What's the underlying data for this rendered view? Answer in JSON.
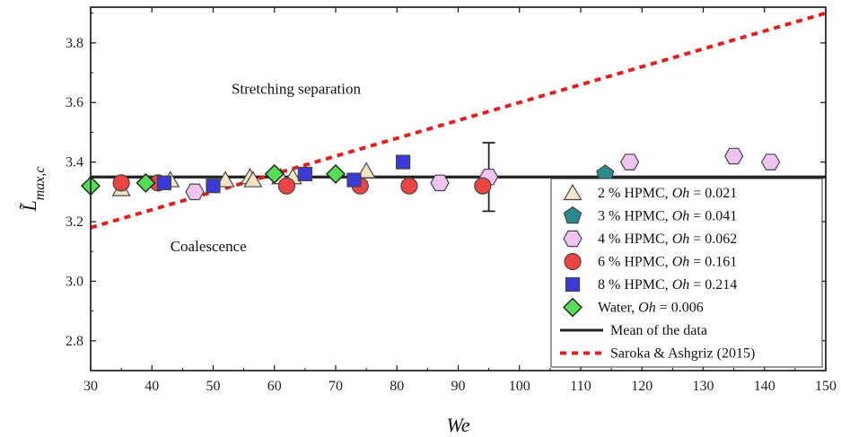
{
  "chart_data": {
    "type": "scatter",
    "xlabel": "We",
    "ylabel": "L̃max,c",
    "xlim": [
      30,
      150
    ],
    "ylim": [
      2.7,
      3.92
    ],
    "xticks": [
      30,
      40,
      50,
      60,
      70,
      80,
      90,
      100,
      110,
      120,
      130,
      140,
      150
    ],
    "yticks": [
      2.8,
      3.0,
      3.2,
      3.4,
      3.6,
      3.8
    ],
    "annotations": [
      {
        "text": "Stretching separation",
        "x": 53,
        "y": 3.63
      },
      {
        "text": "Coalescence",
        "x": 43,
        "y": 3.1
      }
    ],
    "series": [
      {
        "name": "2 % HPMC, Oh = 0.021",
        "marker": "triangle",
        "color": "#f3e4c6",
        "points": [
          [
            35,
            3.31
          ],
          [
            43,
            3.34
          ],
          [
            52,
            3.34
          ],
          [
            56,
            3.35
          ],
          [
            56.5,
            3.34
          ],
          [
            61,
            3.35
          ],
          [
            63,
            3.35
          ],
          [
            75,
            3.37
          ]
        ]
      },
      {
        "name": "3 % HPMC, Oh = 0.041",
        "marker": "pentagon",
        "color": "#2a8a8c",
        "points": [
          [
            114,
            3.36
          ]
        ]
      },
      {
        "name": "4 % HPMC, Oh = 0.062",
        "marker": "hexagon",
        "color": "#f0c4f0",
        "points": [
          [
            47,
            3.3
          ],
          [
            87,
            3.33
          ],
          [
            95,
            3.35
          ],
          [
            118,
            3.4
          ],
          [
            135,
            3.42
          ],
          [
            141,
            3.4
          ]
        ]
      },
      {
        "name": "6 % HPMC, Oh = 0.161",
        "marker": "circle",
        "color": "#ee4444",
        "points": [
          [
            35,
            3.33
          ],
          [
            41,
            3.33
          ],
          [
            62,
            3.32
          ],
          [
            74,
            3.32
          ],
          [
            82,
            3.32
          ],
          [
            94,
            3.32
          ]
        ]
      },
      {
        "name": "8 % HPMC, Oh = 0.214",
        "marker": "square",
        "color": "#3a3ad8",
        "points": [
          [
            42,
            3.33
          ],
          [
            50,
            3.32
          ],
          [
            65,
            3.36
          ],
          [
            73,
            3.34
          ],
          [
            81,
            3.4
          ]
        ]
      },
      {
        "name": "Water, Oh = 0.006",
        "marker": "diamond",
        "color": "#55dd55",
        "points": [
          [
            30,
            3.32
          ],
          [
            39,
            3.33
          ],
          [
            60,
            3.36
          ],
          [
            70,
            3.36
          ]
        ]
      }
    ],
    "lines": [
      {
        "name": "Mean of the data",
        "style": "solid",
        "color": "#222222",
        "points": [
          [
            30,
            3.35
          ],
          [
            150,
            3.35
          ]
        ]
      },
      {
        "name": "Saroka & Ashgriz (2015)",
        "style": "dotted",
        "color": "#e81c1c",
        "points": [
          [
            30,
            3.18
          ],
          [
            150,
            3.9
          ]
        ]
      }
    ],
    "error_bars": [
      {
        "x": 95,
        "y": 3.35,
        "low": 3.235,
        "high": 3.465
      }
    ],
    "legend": {
      "position": "bottom-right",
      "entries": [
        {
          "prefix": "2 % HPMC, ",
          "italic": "Oh",
          "suffix": " = 0.021",
          "marker": "triangle",
          "color": "#f3e4c6"
        },
        {
          "prefix": "3 % HPMC, ",
          "italic": "Oh",
          "suffix": " = 0.041",
          "marker": "pentagon",
          "color": "#2a8a8c"
        },
        {
          "prefix": "4 % HPMC, ",
          "italic": "Oh",
          "suffix": " = 0.062",
          "marker": "hexagon",
          "color": "#f0c4f0"
        },
        {
          "prefix": "6 % HPMC, ",
          "italic": "Oh",
          "suffix": " = 0.161",
          "marker": "circle",
          "color": "#ee4444"
        },
        {
          "prefix": "8 % HPMC, ",
          "italic": "Oh",
          "suffix": " = 0.214",
          "marker": "square",
          "color": "#3a3ad8"
        },
        {
          "prefix": "Water, ",
          "italic": "Oh",
          "suffix": " = 0.006",
          "marker": "diamond",
          "color": "#55dd55"
        },
        {
          "prefix": "Mean of the data",
          "italic": "",
          "suffix": "",
          "marker": "line-solid",
          "color": "#222222"
        },
        {
          "prefix": "Saroka & Ashgriz (2015)",
          "italic": "",
          "suffix": "",
          "marker": "line-dotted",
          "color": "#e81c1c"
        }
      ]
    }
  }
}
